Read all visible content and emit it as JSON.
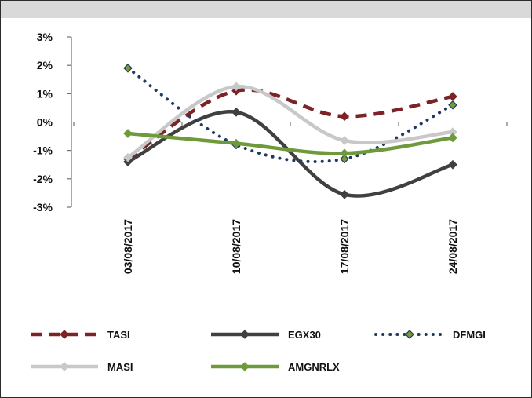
{
  "chart_data": {
    "type": "line",
    "title": "",
    "xlabel": "",
    "ylabel": "",
    "categories": [
      "03/08/2017",
      "10/08/2017",
      "17/08/2017",
      "24/08/2017"
    ],
    "ylim": [
      -3,
      3
    ],
    "y_ticks": [
      3,
      2,
      1,
      0,
      -1,
      -2,
      -3
    ],
    "y_tick_labels": [
      "3%",
      "2%",
      "1%",
      "0%",
      "-1%",
      "-2%",
      "-3%"
    ],
    "grid": false,
    "smooth": true,
    "legend_position": "bottom",
    "series": [
      {
        "name": "TASI",
        "values": [
          -1.3,
          1.1,
          0.2,
          0.9
        ],
        "color": "#7b2326",
        "dash": "dashed",
        "marker": "diamond"
      },
      {
        "name": "EGX30",
        "values": [
          -1.4,
          0.35,
          -2.55,
          -1.5
        ],
        "color": "#404040",
        "dash": "solid",
        "marker": "diamond"
      },
      {
        "name": "DFMGI",
        "values": [
          1.9,
          -0.8,
          -1.3,
          0.6
        ],
        "color": "#1f3a5f",
        "dash": "dotted",
        "marker": "diamond",
        "marker_fill": "#7a9a3a"
      },
      {
        "name": "MASI",
        "values": [
          -1.25,
          1.25,
          -0.65,
          -0.35
        ],
        "color": "#c8c8c8",
        "dash": "solid",
        "marker": "diamond"
      },
      {
        "name": "AMGNRLX",
        "values": [
          -0.4,
          -0.75,
          -1.1,
          -0.55
        ],
        "color": "#6f9a3b",
        "dash": "solid",
        "marker": "diamond"
      }
    ]
  }
}
